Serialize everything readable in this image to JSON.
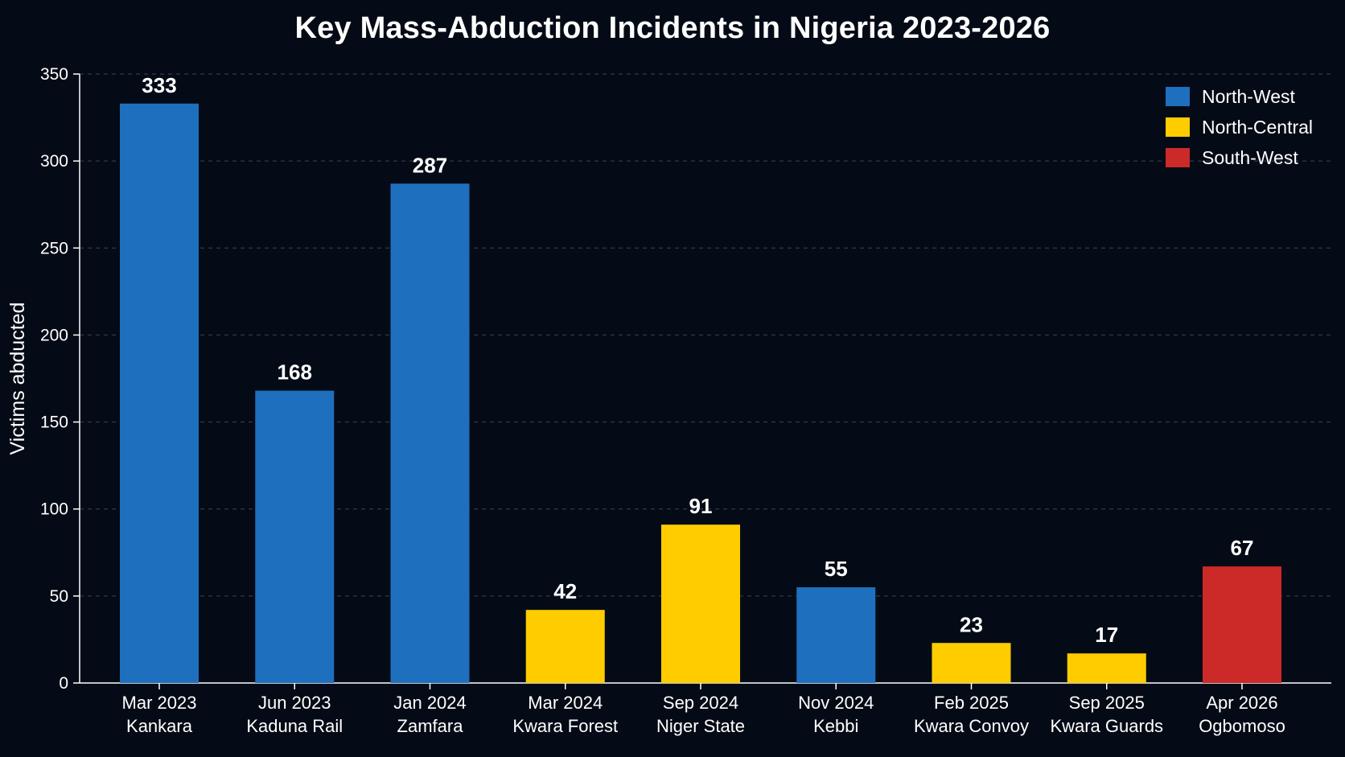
{
  "chart_data": {
    "type": "bar",
    "title": "Key Mass-Abduction Incidents in Nigeria 2023-2026",
    "xlabel": "",
    "ylabel": "Victims abducted",
    "ylim": [
      0,
      350
    ],
    "yticks": [
      0,
      50,
      100,
      150,
      200,
      250,
      300,
      350
    ],
    "grid": "horizontal dashed",
    "legend_position": "top-right",
    "categories": [
      [
        "Mar 2023",
        "Kankara"
      ],
      [
        "Jun 2023",
        "Kaduna Rail"
      ],
      [
        "Jan 2024",
        "Zamfara"
      ],
      [
        "Mar 2024",
        "Kwara Forest"
      ],
      [
        "Sep 2024",
        "Niger State"
      ],
      [
        "Nov 2024",
        "Kebbi"
      ],
      [
        "Feb 2025",
        "Kwara Convoy"
      ],
      [
        "Sep 2025",
        "Kwara Guards"
      ],
      [
        "Apr 2026",
        "Ogbomoso"
      ]
    ],
    "values": [
      333,
      168,
      287,
      42,
      91,
      55,
      23,
      17,
      67
    ],
    "regions": [
      "North-West",
      "North-West",
      "North-West",
      "North-Central",
      "North-Central",
      "North-West",
      "North-Central",
      "North-Central",
      "South-West"
    ],
    "legend": [
      {
        "name": "North-West",
        "color": "#1f6fbf"
      },
      {
        "name": "North-Central",
        "color": "#ffcc00"
      },
      {
        "name": "South-West",
        "color": "#cc2929"
      }
    ]
  }
}
